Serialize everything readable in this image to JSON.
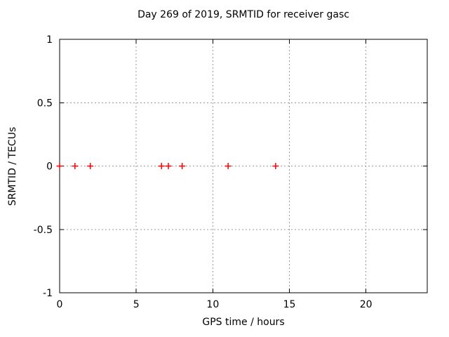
{
  "window": {
    "background": "#ffffff"
  },
  "chart_data": {
    "type": "scatter",
    "title": "Day 269 of 2019, SRMTID for receiver gasc",
    "xlabel": "GPS time / hours",
    "ylabel": "SRMTID / TECUs",
    "xlim": [
      0,
      24
    ],
    "ylim": [
      -1,
      1
    ],
    "x_ticks": [
      0,
      5,
      10,
      15,
      20
    ],
    "x_tick_labels": [
      "0",
      "5",
      "10",
      "15",
      "20"
    ],
    "y_ticks": [
      -1,
      -0.5,
      0,
      0.5,
      1
    ],
    "y_tick_labels": [
      "-1",
      "-0.5",
      "0",
      "0.5",
      "1"
    ],
    "grid": true,
    "grid_style": "dotted",
    "legend": "none",
    "colors": {
      "background": "#ffffff",
      "border": "#000000",
      "grid": "#999999",
      "text": "#000000",
      "marker": "#ff0000"
    },
    "series": [
      {
        "name": "SRMTID",
        "marker": "plus",
        "color": "#ff0000",
        "points": [
          {
            "x": 0.0,
            "y": 0
          },
          {
            "x": 1.0,
            "y": 0
          },
          {
            "x": 2.0,
            "y": 0
          },
          {
            "x": 6.65,
            "y": 0
          },
          {
            "x": 7.1,
            "y": 0
          },
          {
            "x": 8.0,
            "y": 0
          },
          {
            "x": 11.0,
            "y": 0
          },
          {
            "x": 14.1,
            "y": 0
          }
        ]
      }
    ]
  }
}
